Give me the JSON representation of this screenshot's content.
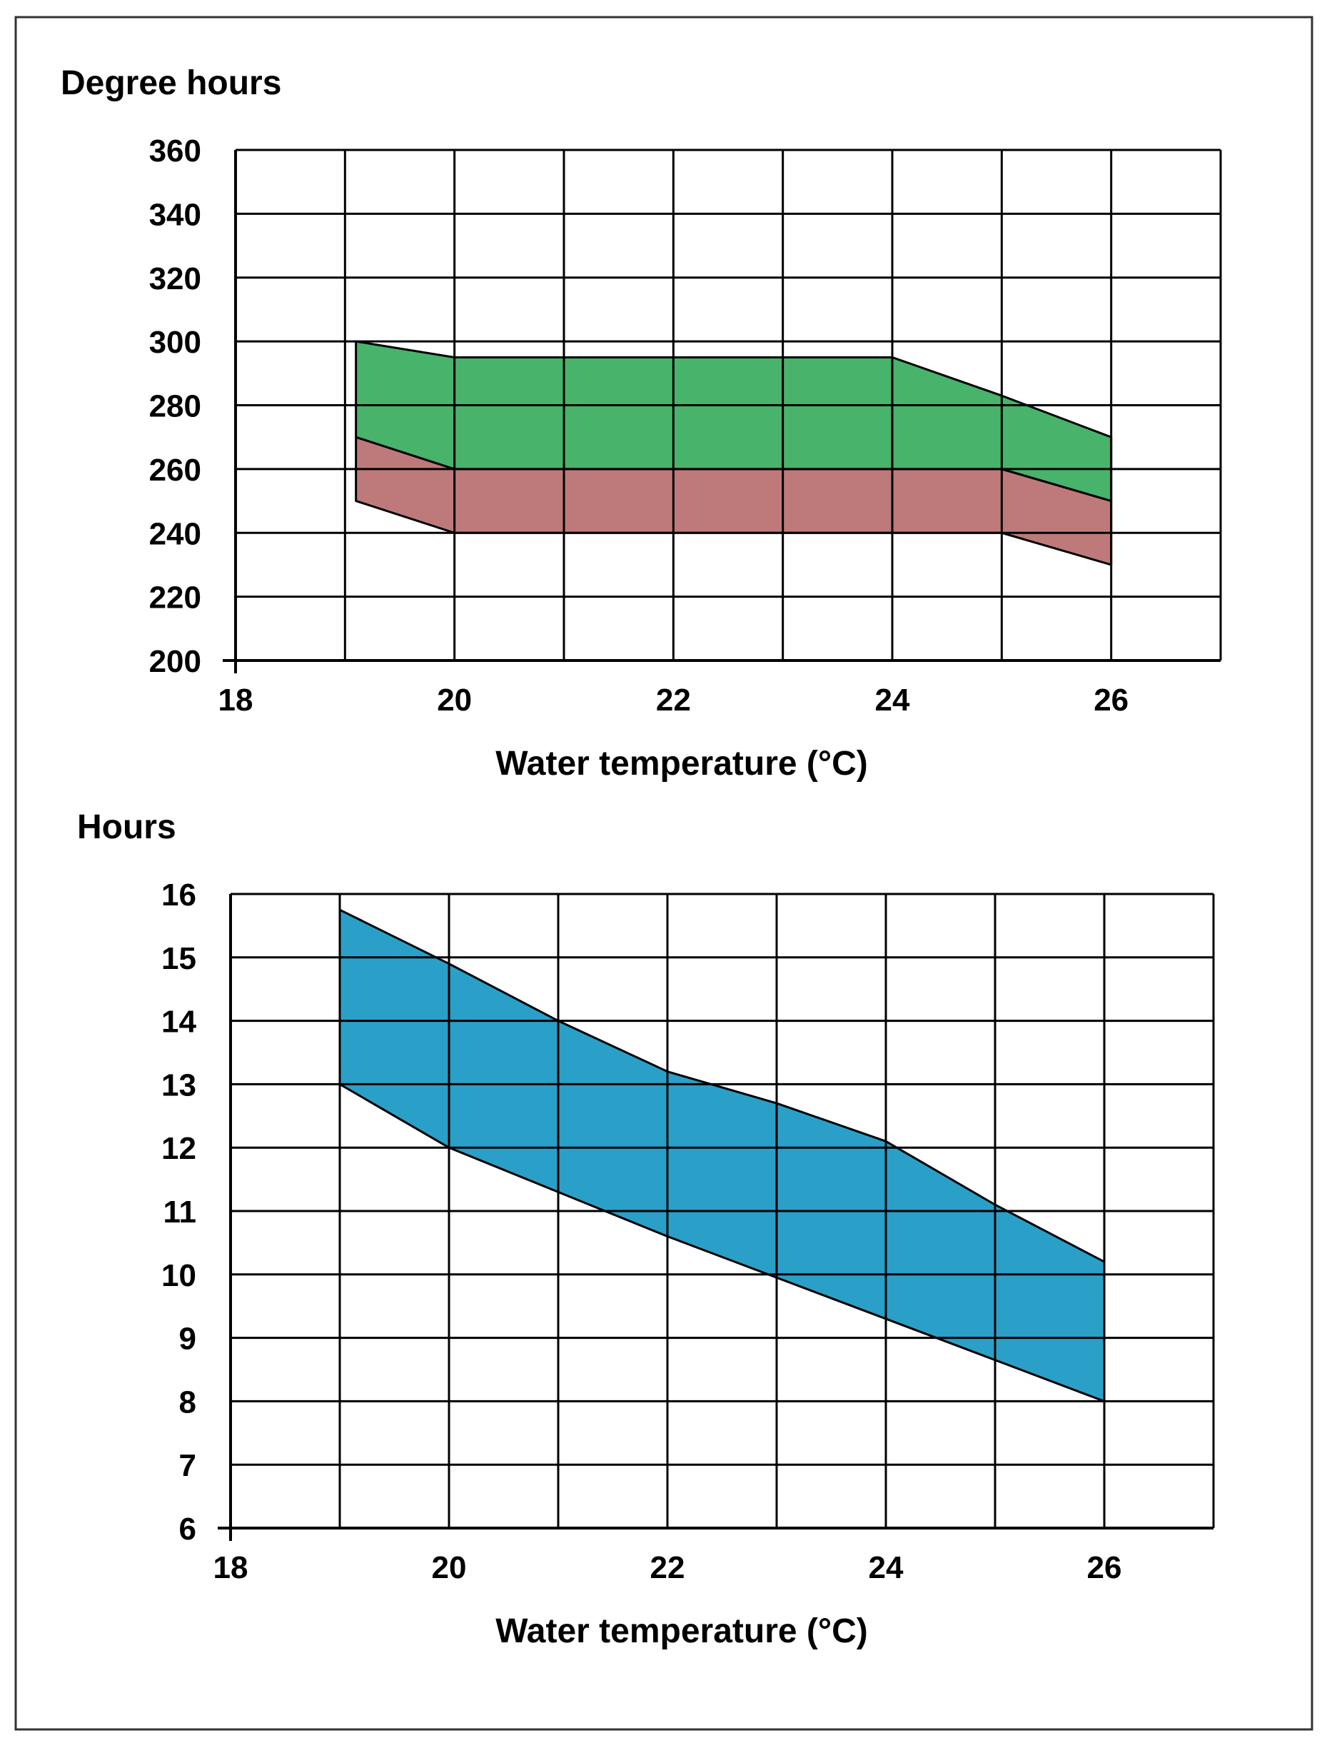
{
  "chart_data": [
    {
      "type": "area",
      "ylabel": "Degree hours",
      "xlabel": "Water temperature (°C)",
      "xlim": [
        18,
        27
      ],
      "ylim": [
        200,
        360
      ],
      "xticks": [
        18,
        20,
        22,
        24,
        26
      ],
      "yticks": [
        200,
        220,
        240,
        260,
        280,
        300,
        320,
        340,
        360
      ],
      "grid": true,
      "bands": [
        {
          "color": "#be7a7a",
          "x": [
            19.1,
            20,
            25,
            26
          ],
          "lower": [
            250,
            240,
            240,
            230
          ],
          "upper": [
            270,
            260,
            260,
            250
          ]
        },
        {
          "color": "#48b36a",
          "x": [
            19.1,
            20,
            24,
            25,
            26
          ],
          "lower": [
            270,
            260,
            260,
            260,
            250
          ],
          "upper": [
            300,
            295,
            295,
            283,
            270
          ]
        }
      ]
    },
    {
      "type": "area",
      "ylabel": "Hours",
      "xlabel": "Water temperature (°C)",
      "xlim": [
        18,
        27
      ],
      "ylim": [
        6,
        16
      ],
      "xticks": [
        18,
        20,
        22,
        24,
        26
      ],
      "yticks": [
        6,
        7,
        8,
        9,
        10,
        11,
        12,
        13,
        14,
        15,
        16
      ],
      "grid": true,
      "bands": [
        {
          "color": "#2aa0c8",
          "x": [
            19,
            20,
            21,
            22,
            23,
            24,
            25,
            26
          ],
          "lower": [
            13.0,
            12.0,
            11.3,
            10.6,
            9.95,
            9.3,
            8.65,
            8.0
          ],
          "upper": [
            15.75,
            14.9,
            14.0,
            13.2,
            12.7,
            12.1,
            11.1,
            10.2
          ]
        }
      ]
    }
  ]
}
